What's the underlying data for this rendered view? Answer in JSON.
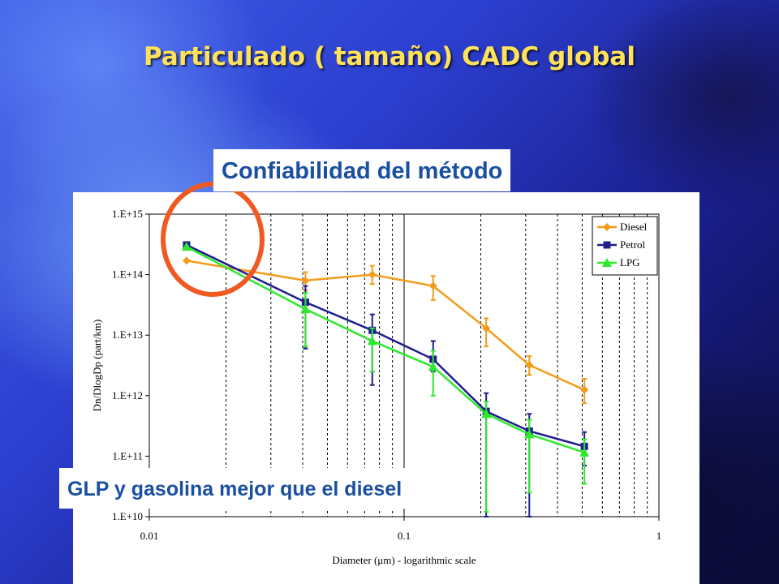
{
  "slide": {
    "title": "Particulado ( tamaño) CADC global",
    "callout_top": "Confiabilidad del método",
    "callout_bottom": "GLP y gasolina mejor que el diesel",
    "highlight_color": "#f05a22"
  },
  "chart_data": {
    "type": "line",
    "xscale": "log",
    "yscale": "log",
    "xlabel": "Diameter (μm) - logarithmic scale",
    "ylabel": "Dn/DlogDp (part/km)",
    "xlim": [
      0.01,
      1
    ],
    "ylim": [
      10000000000.0,
      1000000000000000.0
    ],
    "x_ticks": [
      0.01,
      0.1,
      1
    ],
    "x_tick_labels": [
      "0.01",
      "0.1",
      "1"
    ],
    "y_ticks": [
      10000000000.0,
      100000000000.0,
      1000000000000.0,
      10000000000000.0,
      100000000000000.0,
      1000000000000000.0
    ],
    "y_tick_labels": [
      "1.E+10",
      "1.E+11",
      "1.E+12",
      "1.E+13",
      "1.E+14",
      "1.E+15"
    ],
    "grid": "vertical minor gridlines",
    "legend_position": "top-right",
    "x": [
      0.014,
      0.041,
      0.075,
      0.13,
      0.21,
      0.31,
      0.51
    ],
    "series": [
      {
        "name": "Diesel",
        "color": "#f39c1a",
        "marker": "diamond",
        "values": [
          170000000000000.0,
          80000000000000.0,
          100000000000000.0,
          65000000000000.0,
          13000000000000.0,
          3200000000000.0,
          1250000000000.0
        ],
        "err_low": [
          null,
          55000000000000.0,
          70000000000000.0,
          38000000000000.0,
          6500000000000.0,
          2200000000000.0,
          750000000000.0
        ],
        "err_high": [
          null,
          110000000000000.0,
          140000000000000.0,
          95000000000000.0,
          19000000000000.0,
          4500000000000.0,
          1900000000000.0
        ]
      },
      {
        "name": "Petrol",
        "color": "#1f1f8c",
        "marker": "square",
        "values": [
          310000000000000.0,
          35000000000000.0,
          12000000000000.0,
          4000000000000.0,
          550000000000.0,
          260000000000.0,
          145000000000.0
        ],
        "err_low": [
          null,
          6000000000000.0,
          1500000000000.0,
          2500000000000.0,
          10000000000.0,
          10000000000.0,
          70000000000.0
        ],
        "err_high": [
          null,
          65000000000000.0,
          22000000000000.0,
          8000000000000.0,
          1100000000000.0,
          500000000000.0,
          250000000000.0
        ]
      },
      {
        "name": "LPG",
        "color": "#2ee82e",
        "marker": "triangle",
        "values": [
          290000000000000.0,
          27000000000000.0,
          8000000000000.0,
          3000000000000.0,
          500000000000.0,
          230000000000.0,
          115000000000.0
        ],
        "err_low": [
          null,
          6500000000000.0,
          2500000000000.0,
          1000000000000.0,
          12000000000.0,
          25000000000.0,
          35000000000.0
        ],
        "err_high": [
          null,
          50000000000000.0,
          13000000000000.0,
          5500000000000.0,
          800000000000.0,
          400000000000.0,
          190000000000.0
        ]
      }
    ]
  }
}
